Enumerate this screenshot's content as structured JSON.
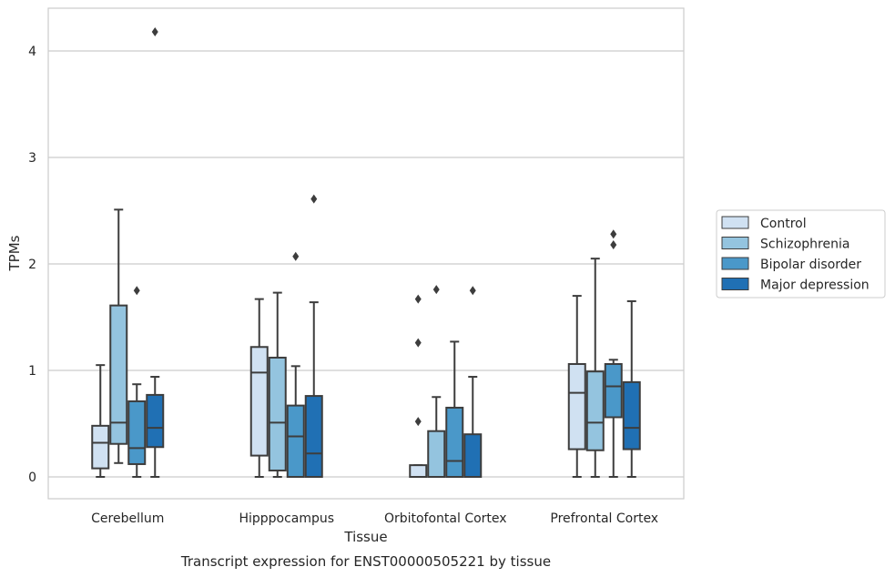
{
  "chart_data": {
    "type": "box",
    "xlabel": "Tissue",
    "ylabel": "TPMs",
    "caption": "Transcript expression for ENST00000505221 by tissue",
    "ylim": [
      -0.2,
      4.4
    ],
    "yticks": [
      0,
      1,
      2,
      3,
      4
    ],
    "grid": "horizontal",
    "legend_position": "right",
    "categories": [
      "Cerebellum",
      "Hipppocampus",
      "Orbitofontal Cortex",
      "Prefrontal Cortex"
    ],
    "series": [
      {
        "name": "Control",
        "color": "#d0e1f2",
        "boxes": [
          {
            "whislo": 0.0,
            "q1": 0.08,
            "med": 0.32,
            "q3": 0.48,
            "whishi": 1.05,
            "fliers": []
          },
          {
            "whislo": 0.0,
            "q1": 0.2,
            "med": 0.98,
            "q3": 1.22,
            "whishi": 1.67,
            "fliers": []
          },
          {
            "whislo": 0.0,
            "q1": 0.0,
            "med": 0.0,
            "q3": 0.11,
            "whishi": 0.11,
            "fliers": [
              0.52,
              1.26,
              1.67
            ]
          },
          {
            "whislo": 0.0,
            "q1": 0.26,
            "med": 0.79,
            "q3": 1.06,
            "whishi": 1.7,
            "fliers": []
          }
        ]
      },
      {
        "name": "Schizophrenia",
        "color": "#94c4df",
        "boxes": [
          {
            "whislo": 0.13,
            "q1": 0.31,
            "med": 0.51,
            "q3": 1.61,
            "whishi": 2.51,
            "fliers": []
          },
          {
            "whislo": 0.0,
            "q1": 0.06,
            "med": 0.51,
            "q3": 1.12,
            "whishi": 1.73,
            "fliers": []
          },
          {
            "whislo": 0.0,
            "q1": 0.0,
            "med": 0.0,
            "q3": 0.43,
            "whishi": 0.75,
            "fliers": [
              1.76
            ]
          },
          {
            "whislo": 0.0,
            "q1": 0.25,
            "med": 0.51,
            "q3": 0.99,
            "whishi": 2.05,
            "fliers": []
          }
        ]
      },
      {
        "name": "Bipolar disorder",
        "color": "#4a98c9",
        "boxes": [
          {
            "whislo": 0.0,
            "q1": 0.12,
            "med": 0.27,
            "q3": 0.71,
            "whishi": 0.87,
            "fliers": [
              1.75
            ]
          },
          {
            "whislo": 0.0,
            "q1": 0.0,
            "med": 0.38,
            "q3": 0.67,
            "whishi": 1.04,
            "fliers": [
              2.07
            ]
          },
          {
            "whislo": 0.0,
            "q1": 0.0,
            "med": 0.15,
            "q3": 0.65,
            "whishi": 1.27,
            "fliers": []
          },
          {
            "whislo": 0.0,
            "q1": 0.56,
            "med": 0.85,
            "q3": 1.06,
            "whishi": 1.1,
            "fliers": [
              2.18,
              2.28
            ]
          }
        ]
      },
      {
        "name": "Major depression",
        "color": "#2070b4",
        "boxes": [
          {
            "whislo": 0.0,
            "q1": 0.28,
            "med": 0.46,
            "q3": 0.77,
            "whishi": 0.94,
            "fliers": [
              4.18
            ]
          },
          {
            "whislo": 0.0,
            "q1": 0.0,
            "med": 0.22,
            "q3": 0.76,
            "whishi": 1.64,
            "fliers": [
              2.61
            ]
          },
          {
            "whislo": 0.0,
            "q1": 0.0,
            "med": 0.0,
            "q3": 0.4,
            "whishi": 0.94,
            "fliers": [
              1.75
            ]
          },
          {
            "whislo": 0.0,
            "q1": 0.26,
            "med": 0.46,
            "q3": 0.89,
            "whishi": 1.65,
            "fliers": []
          }
        ]
      }
    ]
  }
}
